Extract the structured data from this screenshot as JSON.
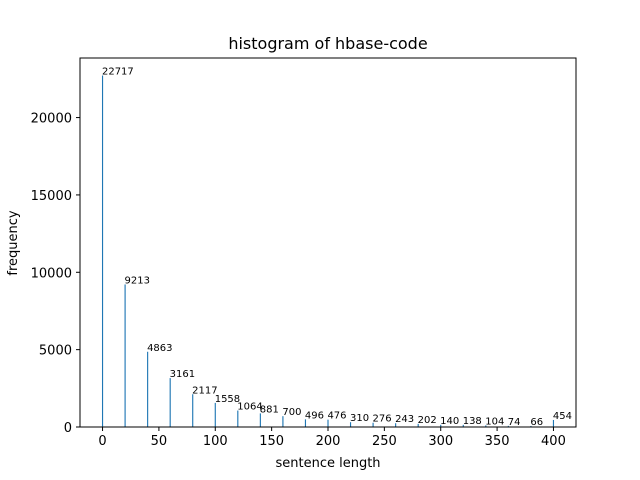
{
  "chart_data": {
    "type": "bar",
    "title": "histogram of hbase-code",
    "xlabel": "sentence length",
    "ylabel": "frequency",
    "xlim": [
      -20,
      420
    ],
    "ylim": [
      0,
      23850
    ],
    "bar_width": 1,
    "x_ticks": [
      0,
      50,
      100,
      150,
      200,
      250,
      300,
      350,
      400
    ],
    "y_ticks": [
      0,
      5000,
      10000,
      15000,
      20000
    ],
    "x": [
      0,
      20,
      40,
      60,
      80,
      100,
      120,
      140,
      160,
      180,
      200,
      220,
      240,
      260,
      280,
      300,
      320,
      340,
      360,
      380,
      400
    ],
    "values": [
      22717,
      9213,
      4863,
      3161,
      2117,
      1558,
      1064,
      881,
      700,
      496,
      476,
      310,
      276,
      243,
      202,
      140,
      138,
      104,
      74,
      66,
      454
    ],
    "grid": false,
    "colors": {
      "bar": "#1f77b4",
      "axes": "#000000",
      "background": "#ffffff"
    }
  }
}
